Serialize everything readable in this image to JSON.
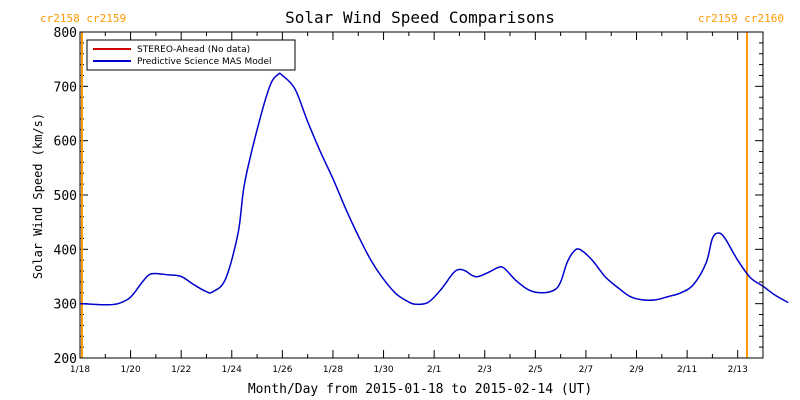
{
  "chart_data": {
    "type": "line",
    "title": "Solar Wind Speed Comparisons",
    "xlabel": "Month/Day from 2015-01-18 to 2015-02-14 (UT)",
    "ylabel": "Solar Wind Speed (km/s)",
    "ylim": [
      200,
      800
    ],
    "xlim": [
      "2015-01-18",
      "2015-02-14"
    ],
    "x_tick_labels": [
      "1/18",
      "1/20",
      "1/22",
      "1/24",
      "1/26",
      "1/28",
      "1/30",
      "2/1",
      "2/3",
      "2/5",
      "2/7",
      "2/9",
      "2/11",
      "2/13"
    ],
    "y_tick_labels": [
      "200",
      "300",
      "400",
      "500",
      "600",
      "700",
      "800"
    ],
    "legend_position": "top-left",
    "legend": [
      {
        "label": "STEREO-Ahead (No data)",
        "color": "#cc0000"
      },
      {
        "label": "Predictive Science MAS Model",
        "color": "#0000cc"
      }
    ],
    "carrington_markers": [
      {
        "top_label": "cr2158 cr2159",
        "x": "2015-01-18",
        "color": "#ff9900"
      },
      {
        "top_label": "cr2159 cr2160",
        "x": "2015-02-14",
        "color": "#ff9900"
      }
    ],
    "series": [
      {
        "name": "Predictive Science MAS Model",
        "color": "#0000cc",
        "points": [
          [
            "2015-01-18T00:00",
            300
          ],
          [
            "2015-01-18T12:00",
            299
          ],
          [
            "2015-01-19T00:00",
            298
          ],
          [
            "2015-01-19T12:00",
            300
          ],
          [
            "2015-01-20T00:00",
            312
          ],
          [
            "2015-01-20T12:00",
            342
          ],
          [
            "2015-01-20T20:00",
            355
          ],
          [
            "2015-01-21T12:00",
            353
          ],
          [
            "2015-01-22T00:00",
            350
          ],
          [
            "2015-01-22T12:00",
            335
          ],
          [
            "2015-01-23T00:00",
            322
          ],
          [
            "2015-01-23T06:00",
            322
          ],
          [
            "2015-01-23T18:00",
            345
          ],
          [
            "2015-01-24T06:00",
            430
          ],
          [
            "2015-01-24T12:00",
            520
          ],
          [
            "2015-01-25T00:00",
            620
          ],
          [
            "2015-01-25T12:00",
            700
          ],
          [
            "2015-01-25T20:00",
            722
          ],
          [
            "2015-01-26T00:00",
            720
          ],
          [
            "2015-01-26T12:00",
            695
          ],
          [
            "2015-01-27T00:00",
            635
          ],
          [
            "2015-01-27T12:00",
            580
          ],
          [
            "2015-01-28T00:00",
            530
          ],
          [
            "2015-01-28T12:00",
            475
          ],
          [
            "2015-01-29T00:00",
            425
          ],
          [
            "2015-01-29T12:00",
            380
          ],
          [
            "2015-01-30T00:00",
            345
          ],
          [
            "2015-01-30T12:00",
            318
          ],
          [
            "2015-01-31T00:00",
            303
          ],
          [
            "2015-01-31T06:00",
            299
          ],
          [
            "2015-01-31T18:00",
            302
          ],
          [
            "2015-02-01T06:00",
            325
          ],
          [
            "2015-02-01T18:00",
            356
          ],
          [
            "2015-02-02T00:00",
            363
          ],
          [
            "2015-02-02T06:00",
            360
          ],
          [
            "2015-02-02T12:00",
            352
          ],
          [
            "2015-02-02T18:00",
            350
          ],
          [
            "2015-02-03T06:00",
            360
          ],
          [
            "2015-02-03T12:00",
            366
          ],
          [
            "2015-02-03T18:00",
            366
          ],
          [
            "2015-02-04T06:00",
            342
          ],
          [
            "2015-02-04T18:00",
            325
          ],
          [
            "2015-02-05T06:00",
            320
          ],
          [
            "2015-02-05T18:00",
            325
          ],
          [
            "2015-02-06T00:00",
            340
          ],
          [
            "2015-02-06T06:00",
            375
          ],
          [
            "2015-02-06T12:00",
            395
          ],
          [
            "2015-02-06T18:00",
            400
          ],
          [
            "2015-02-07T06:00",
            380
          ],
          [
            "2015-02-07T18:00",
            350
          ],
          [
            "2015-02-08T06:00",
            330
          ],
          [
            "2015-02-08T18:00",
            313
          ],
          [
            "2015-02-09T06:00",
            307
          ],
          [
            "2015-02-09T18:00",
            307
          ],
          [
            "2015-02-10T06:00",
            313
          ],
          [
            "2015-02-10T18:00",
            320
          ],
          [
            "2015-02-11T06:00",
            335
          ],
          [
            "2015-02-11T18:00",
            375
          ],
          [
            "2015-02-12T00:00",
            420
          ],
          [
            "2015-02-12T06:00",
            430
          ],
          [
            "2015-02-12T12:00",
            420
          ],
          [
            "2015-02-13T00:00",
            380
          ],
          [
            "2015-02-13T12:00",
            348
          ],
          [
            "2015-02-14T00:00",
            332
          ],
          [
            "2015-02-14T12:00",
            315
          ],
          [
            "2015-02-15T00:00",
            302
          ]
        ]
      }
    ]
  }
}
